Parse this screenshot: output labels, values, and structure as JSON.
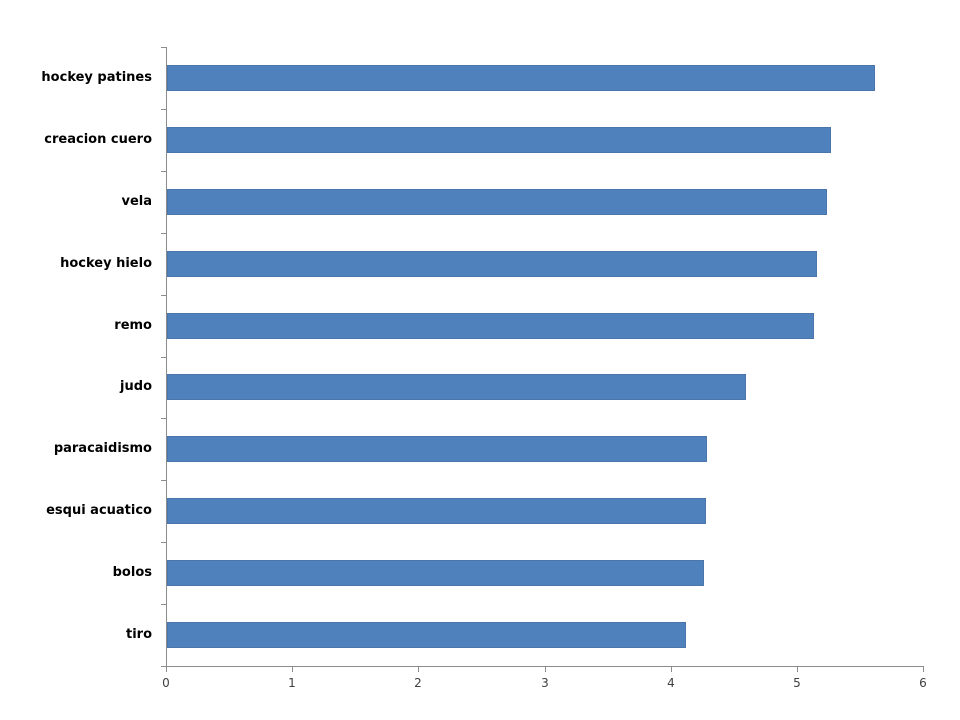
{
  "chart_data": {
    "type": "bar",
    "orientation": "horizontal",
    "title": "",
    "xlabel": "",
    "ylabel": "",
    "categories": [
      "hockey patines",
      "creacion cuero",
      "vela",
      "hockey hielo",
      "remo",
      "judo",
      "paracaidismo",
      "esqui acuatico",
      "bolos",
      "tiro"
    ],
    "values": [
      5.61,
      5.26,
      5.23,
      5.15,
      5.13,
      4.59,
      4.28,
      4.27,
      4.26,
      4.11
    ],
    "xlim": [
      0,
      6
    ],
    "x_ticks": [
      0,
      1,
      2,
      3,
      4,
      5,
      6
    ],
    "grid": false,
    "legend": false,
    "bar_color": "#4f81bd",
    "bar_border_color": "#4a76ab",
    "axis_color": "#8c8c8c",
    "tick_label_color": "#3f3f3f",
    "category_label_color": "#000000",
    "background_color": "#ffffff"
  }
}
